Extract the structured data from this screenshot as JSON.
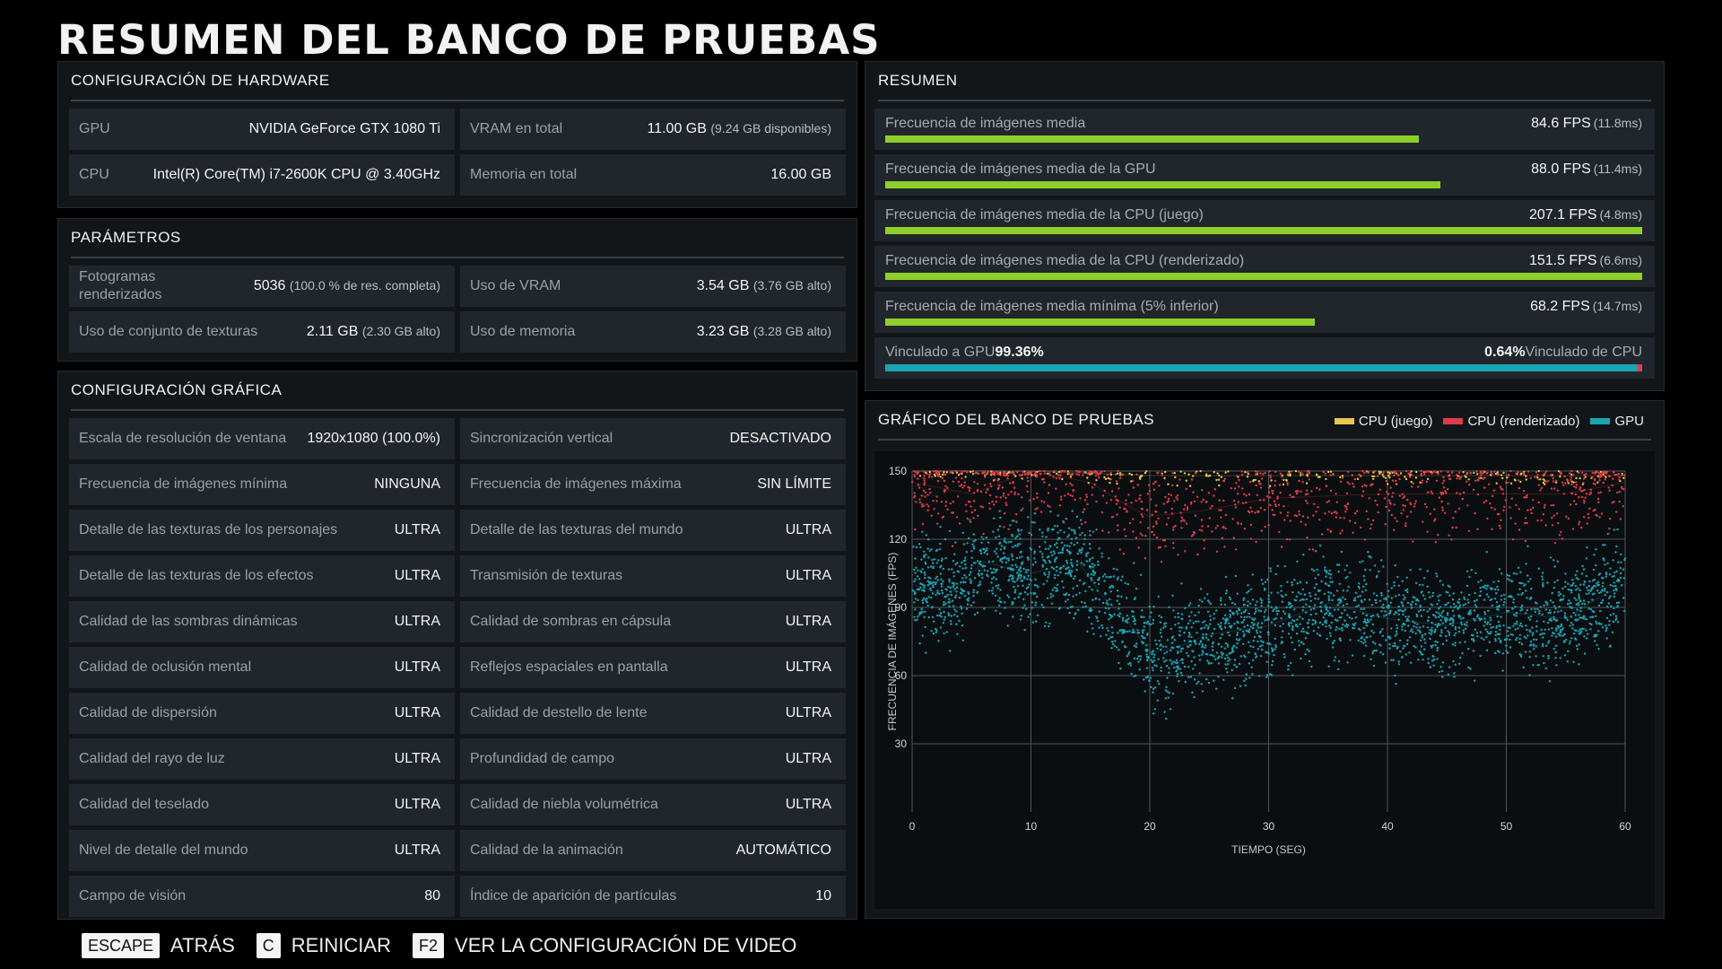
{
  "title": "RESUMEN DEL BANCO DE PRUEBAS",
  "hardware": {
    "heading": "CONFIGURACIÓN DE HARDWARE",
    "rows": [
      {
        "label": "GPU",
        "value": "NVIDIA GeForce GTX 1080 Ti",
        "sub": ""
      },
      {
        "label": "VRAM en total",
        "value": "11.00 GB",
        "sub": "(9.24 GB disponibles)"
      },
      {
        "label": "CPU",
        "value": "Intel(R) Core(TM) i7-2600K CPU @ 3.40GHz",
        "sub": ""
      },
      {
        "label": "Memoria en total",
        "value": "16.00 GB",
        "sub": ""
      }
    ]
  },
  "params": {
    "heading": "PARÁMETROS",
    "rows": [
      {
        "label": "Fotogramas renderizados",
        "value": "5036",
        "sub": "(100.0 % de res. completa)"
      },
      {
        "label": "Uso de VRAM",
        "value": "3.54 GB",
        "sub": "(3.76 GB alto)"
      },
      {
        "label": "Uso de conjunto de texturas",
        "value": "2.11 GB",
        "sub": "(2.30 GB alto)"
      },
      {
        "label": "Uso de memoria",
        "value": "3.23 GB",
        "sub": "(3.28 GB alto)"
      }
    ]
  },
  "graphics": {
    "heading": "CONFIGURACIÓN GRÁFICA",
    "rows": [
      {
        "label": "Escala de resolución de ventana",
        "value": "1920x1080 (100.0%)"
      },
      {
        "label": "Sincronización vertical",
        "value": "DESACTIVADO"
      },
      {
        "label": "Frecuencia de imágenes mínima",
        "value": "NINGUNA"
      },
      {
        "label": "Frecuencia de imágenes máxima",
        "value": "SIN LÍMITE"
      },
      {
        "label": "Detalle de las texturas de los personajes",
        "value": "ULTRA"
      },
      {
        "label": "Detalle de las texturas del mundo",
        "value": "ULTRA"
      },
      {
        "label": "Detalle de las texturas de los efectos",
        "value": "ULTRA"
      },
      {
        "label": "Transmisión de texturas",
        "value": "ULTRA"
      },
      {
        "label": "Calidad de las sombras dinámicas",
        "value": "ULTRA"
      },
      {
        "label": "Calidad de sombras en cápsula",
        "value": "ULTRA"
      },
      {
        "label": "Calidad de oclusión mental",
        "value": "ULTRA"
      },
      {
        "label": "Reflejos espaciales en pantalla",
        "value": "ULTRA"
      },
      {
        "label": "Calidad de dispersión",
        "value": "ULTRA"
      },
      {
        "label": "Calidad de destello de lente",
        "value": "ULTRA"
      },
      {
        "label": "Calidad del rayo de luz",
        "value": "ULTRA"
      },
      {
        "label": "Profundidad de campo",
        "value": "ULTRA"
      },
      {
        "label": "Calidad del teselado",
        "value": "ULTRA"
      },
      {
        "label": "Calidad de niebla volumétrica",
        "value": "ULTRA"
      },
      {
        "label": "Nivel de detalle del mundo",
        "value": "ULTRA"
      },
      {
        "label": "Calidad de la animación",
        "value": "AUTOMÁTICO"
      },
      {
        "label": "Campo de visión",
        "value": "80"
      },
      {
        "label": "Índice de aparición de partículas",
        "value": "10"
      }
    ]
  },
  "summary": {
    "heading": "RESUMEN",
    "rows": [
      {
        "label": "Frecuencia de imágenes media",
        "value": "84.6 FPS",
        "ms": "(11.8ms)",
        "fill": 0.705
      },
      {
        "label": "Frecuencia de imágenes media de la GPU",
        "value": "88.0 FPS",
        "ms": "(11.4ms)",
        "fill": 0.733
      },
      {
        "label": "Frecuencia de imágenes media de la CPU (juego)",
        "value": "207.1 FPS",
        "ms": "(4.8ms)",
        "fill": 1.0
      },
      {
        "label": "Frecuencia de imágenes media de la CPU (renderizado)",
        "value": "151.5 FPS",
        "ms": "(6.6ms)",
        "fill": 1.0
      },
      {
        "label": "Frecuencia de imágenes media mínima (5% inferior)",
        "value": "68.2 FPS",
        "ms": "(14.7ms)",
        "fill": 0.568
      }
    ],
    "bound": {
      "gpu_label": "Vinculado a GPU",
      "gpu_value": "99.36%",
      "cpu_label": "Vinculado de CPU",
      "cpu_value": "0.64%",
      "gpu_fraction": 0.9936,
      "gpu_color": "#1aa5b6",
      "cpu_color": "#e03c4b"
    },
    "bar_color": "#8ecf29"
  },
  "chart": {
    "heading": "GRÁFICO DEL BANCO DE PRUEBAS",
    "legend": [
      {
        "name": "CPU (juego)",
        "color": "#e8c74a"
      },
      {
        "name": "CPU (renderizado)",
        "color": "#e03c4b"
      },
      {
        "name": "GPU",
        "color": "#1aa5b6"
      }
    ]
  },
  "chart_data": {
    "type": "scatter",
    "title": "GRÁFICO DEL BANCO DE PRUEBAS",
    "xlabel": "TIEMPO (SEG)",
    "ylabel": "FRECUENCIA DE IMÁGENES (FPS)",
    "xlim": [
      0,
      60
    ],
    "ylim": [
      0,
      150
    ],
    "xticks": [
      0,
      10,
      20,
      30,
      40,
      50,
      60
    ],
    "yticks": [
      30,
      60,
      90,
      120,
      150
    ],
    "grid": true,
    "legend_position": "top-right",
    "series": [
      {
        "name": "CPU (juego)",
        "color": "#e8c74a",
        "trend": [
          [
            0,
            150
          ],
          [
            10,
            150
          ],
          [
            20,
            148
          ],
          [
            30,
            148
          ],
          [
            40,
            148
          ],
          [
            50,
            148
          ],
          [
            60,
            148
          ]
        ],
        "spread": 2
      },
      {
        "name": "CPU (renderizado)",
        "color": "#e03c4b",
        "trend": [
          [
            0,
            145
          ],
          [
            5,
            140
          ],
          [
            10,
            150
          ],
          [
            15,
            145
          ],
          [
            18,
            135
          ],
          [
            20,
            130
          ],
          [
            25,
            133
          ],
          [
            30,
            138
          ],
          [
            40,
            140
          ],
          [
            50,
            140
          ],
          [
            55,
            140
          ],
          [
            60,
            145
          ]
        ],
        "spread": 10
      },
      {
        "name": "GPU",
        "color": "#1aa5b6",
        "trend": [
          [
            0,
            100
          ],
          [
            3,
            95
          ],
          [
            6,
            110
          ],
          [
            10,
            105
          ],
          [
            14,
            110
          ],
          [
            16,
            95
          ],
          [
            18,
            85
          ],
          [
            20,
            70
          ],
          [
            22,
            72
          ],
          [
            25,
            78
          ],
          [
            30,
            82
          ],
          [
            35,
            92
          ],
          [
            40,
            85
          ],
          [
            45,
            82
          ],
          [
            50,
            88
          ],
          [
            55,
            85
          ],
          [
            58,
            95
          ],
          [
            60,
            100
          ]
        ],
        "spread": 11
      }
    ]
  },
  "footer": [
    {
      "key": "ESCAPE",
      "label": "ATRÁS"
    },
    {
      "key": "C",
      "label": "REINICIAR"
    },
    {
      "key": "F2",
      "label": "VER LA CONFIGURACIÓN DE VIDEO"
    }
  ]
}
